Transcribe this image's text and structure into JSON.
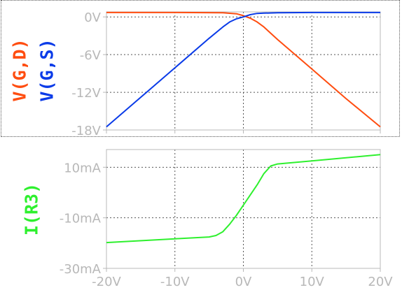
{
  "colors": {
    "gd": "#ff4d10",
    "gs": "#0a3be8",
    "ir3": "#2ef02e",
    "tick": "#b8b8b8",
    "grid": "#555555"
  },
  "top_pane": {
    "ylabel_gd": "V(G,D)",
    "ylabel_gs": "V(G,S)"
  },
  "bottom_pane": {
    "ylabel": "I(R3)"
  },
  "chart_data": [
    {
      "type": "line",
      "xlim": [
        -20,
        20
      ],
      "ylim": [
        -18,
        0.8
      ],
      "y_ticks": [
        "0V",
        "-6V",
        "-12V",
        "-18V"
      ],
      "y_tick_values": [
        0,
        -6,
        -12,
        -18
      ],
      "x_tick_values": [
        -20,
        -10,
        0,
        10,
        20
      ],
      "grid": true,
      "series": [
        {
          "name": "V(G,D)",
          "color": "#ff4d10",
          "x": [
            -20,
            -10,
            -3,
            -1,
            0,
            1,
            2,
            3,
            5,
            10,
            15,
            20
          ],
          "y": [
            0.7,
            0.7,
            0.65,
            0.5,
            0.2,
            -0.2,
            -0.8,
            -1.6,
            -3.6,
            -8.3,
            -13,
            -17.5
          ]
        },
        {
          "name": "V(G,S)",
          "color": "#0a3be8",
          "x": [
            -20,
            -15,
            -10,
            -5,
            -3,
            -2,
            -1,
            0,
            1,
            2,
            3,
            5,
            10,
            20
          ],
          "y": [
            -17.5,
            -12.8,
            -8.1,
            -3.4,
            -1.6,
            -0.8,
            -0.3,
            0,
            0.35,
            0.55,
            0.6,
            0.65,
            0.7,
            0.7
          ]
        }
      ]
    },
    {
      "type": "line",
      "xlim": [
        -20,
        20
      ],
      "ylim": [
        -30,
        17
      ],
      "y_ticks": [
        "10mA",
        "-10mA",
        "-30mA"
      ],
      "y_tick_values": [
        10,
        -10,
        -30
      ],
      "x_ticks": [
        "-20V",
        "-10V",
        "0V",
        "10V",
        "20V"
      ],
      "x_tick_values": [
        -20,
        -10,
        0,
        10,
        20
      ],
      "grid": true,
      "series": [
        {
          "name": "I(R3)",
          "color": "#2ef02e",
          "x": [
            -20,
            -10,
            -5,
            -4,
            -3,
            -2,
            -1,
            0,
            1,
            2,
            3,
            4,
            5,
            10,
            20
          ],
          "y": [
            -19.8,
            -18.3,
            -17.6,
            -17.0,
            -15.5,
            -12.5,
            -9.0,
            -5.0,
            -1.0,
            3.0,
            7.5,
            10.5,
            11.3,
            12.5,
            15.0
          ]
        }
      ]
    }
  ]
}
